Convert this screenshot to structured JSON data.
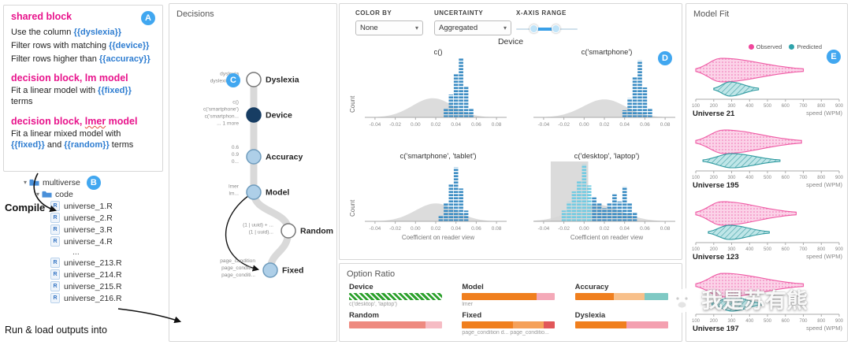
{
  "badges": {
    "a": "A",
    "b": "B",
    "c": "C",
    "d": "D",
    "e": "E"
  },
  "colors": {
    "accent_blue": "#41a7f0",
    "pink_title": "#e8148c",
    "variable_blue": "#2e7dd1",
    "hist_blue": "#3e8ec4",
    "hist_cyan": "#72cbe2",
    "node_dark": "#173d63",
    "node_light": "#aecfe8",
    "observed_pink": "#f0479c",
    "predicted_teal": "#2fa3ab",
    "ratio_green": "#2ca02c",
    "ratio_orange": "#f07f1e"
  },
  "shared_block": {
    "title": "shared block",
    "groups": [
      {
        "title": null,
        "lines": [
          [
            {
              "t": "Use the column "
            },
            {
              "t": "{{dyslexia}}",
              "v": true
            }
          ],
          [
            {
              "t": "Filter rows with matching "
            },
            {
              "t": "{{device}}",
              "v": true
            }
          ],
          [
            {
              "t": "Filter rows higher than "
            },
            {
              "t": "{{accuracy}}",
              "v": true
            }
          ]
        ]
      },
      {
        "title": [
          {
            "t": "decision block, lm model"
          }
        ],
        "lines": [
          [
            {
              "t": "Fit a linear model with "
            },
            {
              "t": "{{fixed}}",
              "v": true
            },
            {
              "t": " terms"
            }
          ]
        ]
      },
      {
        "title": [
          {
            "t": "decision block, "
          },
          {
            "t": "lmer",
            "squiggle": true
          },
          {
            "t": " model"
          }
        ],
        "lines": [
          [
            {
              "t": "Fit a linear mixed model with "
            },
            {
              "t": "{{fixed}}",
              "v": true
            },
            {
              "t": " and "
            },
            {
              "t": "{{random}}",
              "v": true
            },
            {
              "t": " terms"
            }
          ]
        ]
      }
    ]
  },
  "file_tree": {
    "root": "multiverse",
    "sub": "code",
    "files_top": [
      "universe_1.R",
      "universe_2.R",
      "universe_3.R",
      "universe_4.R"
    ],
    "ellipsis": "...",
    "files_bottom": [
      "universe_213.R",
      "universe_214.R",
      "universe_215.R",
      "universe_216.R"
    ],
    "compile_label": "Compile",
    "run_label": "Run & load outputs into"
  },
  "decisions": {
    "title": "Decisions",
    "nodes": [
      {
        "name": "Dyslexia",
        "fill": "white"
      },
      {
        "name": "Device",
        "fill": "dark"
      },
      {
        "name": "Accuracy",
        "fill": "light"
      },
      {
        "name": "Model",
        "fill": "light"
      },
      {
        "name": "Random",
        "fill": "white"
      },
      {
        "name": "Fixed",
        "fill": "light"
      }
    ],
    "edge_labels": [
      [
        "dyslexia",
        "dyslexia_bin"
      ],
      [
        "c()",
        "c('smartphone')",
        "c('smartphon...",
        "... 1 more"
      ],
      [
        "0.6",
        "0.9",
        "0..."
      ],
      [
        "lmer",
        "lm..."
      ],
      [
        "(1 | uuid) + ...",
        "(1 | uuid)..."
      ],
      [
        "page_condition",
        "page_conditi...",
        "page_conditi..."
      ]
    ]
  },
  "controls": {
    "color_by_label": "COLOR BY",
    "color_by_value": "None",
    "uncertainty_label": "UNCERTAINTY",
    "uncertainty_value": "Aggregated",
    "xaxis_label": "X-AXIS RANGE",
    "xaxis_handles": [
      0.28,
      0.62
    ]
  },
  "facet_title": "Device",
  "chart_data": [
    {
      "type": "bar",
      "title": "c()",
      "xlabel": "Coefficient on reader view",
      "ylabel": "Count",
      "xlim": [
        -0.05,
        0.09
      ],
      "xticks": [
        -0.04,
        -0.02,
        0,
        0.02,
        0.04,
        0.06,
        0.08
      ],
      "bars": [
        {
          "x": 0.03,
          "h": 0.14
        },
        {
          "x": 0.035,
          "h": 0.38
        },
        {
          "x": 0.04,
          "h": 0.72
        },
        {
          "x": 0.045,
          "h": 1.0
        },
        {
          "x": 0.05,
          "h": 0.52
        },
        {
          "x": 0.055,
          "h": 0.14
        }
      ],
      "density": {
        "mean": 0.017,
        "sd": 0.02,
        "h": 0.32
      }
    },
    {
      "type": "bar",
      "title": "c('smartphone')",
      "xlabel": "Coefficient on reader view",
      "ylabel": "Count",
      "xlim": [
        -0.05,
        0.09
      ],
      "xticks": [
        -0.04,
        -0.02,
        0,
        0.02,
        0.04,
        0.06,
        0.08
      ],
      "bars": [
        {
          "x": 0.04,
          "h": 0.12
        },
        {
          "x": 0.045,
          "h": 0.32
        },
        {
          "x": 0.05,
          "h": 0.68
        },
        {
          "x": 0.055,
          "h": 0.95
        },
        {
          "x": 0.06,
          "h": 0.5
        },
        {
          "x": 0.065,
          "h": 0.15
        }
      ],
      "density": {
        "mean": 0.02,
        "sd": 0.021,
        "h": 0.3
      }
    },
    {
      "type": "bar",
      "title": "c('smartphone', 'tablet')",
      "xlabel": "Coefficient on reader view",
      "ylabel": "Count",
      "xlim": [
        -0.05,
        0.09
      ],
      "xticks": [
        -0.04,
        -0.02,
        0,
        0.02,
        0.04,
        0.06,
        0.08
      ],
      "bars": [
        {
          "x": 0.025,
          "h": 0.1
        },
        {
          "x": 0.03,
          "h": 0.3
        },
        {
          "x": 0.035,
          "h": 0.62
        },
        {
          "x": 0.04,
          "h": 0.9
        },
        {
          "x": 0.045,
          "h": 0.55
        },
        {
          "x": 0.05,
          "h": 0.18
        }
      ],
      "density": {
        "mean": 0.02,
        "sd": 0.02,
        "h": 0.3
      }
    },
    {
      "type": "bar",
      "title": "c('desktop', 'laptop')",
      "xlabel": "Coefficient on reader view",
      "ylabel": "Count",
      "xlim": [
        -0.05,
        0.09
      ],
      "xticks": [
        -0.04,
        -0.02,
        0,
        0.02,
        0.04,
        0.06,
        0.08
      ],
      "brush": [
        -0.033,
        0.004
      ],
      "bars": [
        {
          "x": -0.02,
          "h": 0.18,
          "c": "cyan"
        },
        {
          "x": -0.015,
          "h": 0.32,
          "c": "cyan"
        },
        {
          "x": -0.01,
          "h": 0.5,
          "c": "cyan"
        },
        {
          "x": -0.005,
          "h": 0.68,
          "c": "cyan"
        },
        {
          "x": 0,
          "h": 0.95,
          "c": "cyan"
        },
        {
          "x": 0.005,
          "h": 0.6,
          "c": "cyan"
        },
        {
          "x": 0.01,
          "h": 0.4
        },
        {
          "x": 0.015,
          "h": 0.3
        },
        {
          "x": 0.02,
          "h": 0.22
        },
        {
          "x": 0.025,
          "h": 0.3
        },
        {
          "x": 0.03,
          "h": 0.45
        },
        {
          "x": 0.035,
          "h": 0.33
        },
        {
          "x": 0.04,
          "h": 0.58
        },
        {
          "x": 0.045,
          "h": 0.3
        },
        {
          "x": 0.05,
          "h": 0.14
        }
      ],
      "density": {
        "mean": 0.012,
        "sd": 0.024,
        "h": 0.28
      }
    },
    {
      "type": "violin",
      "title": "Model Fit",
      "xlabel": "speed (WPM)",
      "xticks": [
        100,
        200,
        300,
        400,
        500,
        600,
        700,
        800,
        900
      ],
      "series": [
        {
          "name": "Observed",
          "color": "#f0479c"
        },
        {
          "name": "Predicted",
          "color": "#2fa3ab"
        }
      ],
      "universes": [
        {
          "name": "Universe 21",
          "observed": {
            "min": 100,
            "peak": 240,
            "max": 700
          },
          "predicted": {
            "min": 200,
            "peak": 290,
            "max": 450
          }
        },
        {
          "name": "Universe 195",
          "observed": {
            "min": 100,
            "peak": 255,
            "max": 690
          },
          "predicted": {
            "min": 140,
            "peak": 300,
            "max": 570
          }
        },
        {
          "name": "Universe 123",
          "observed": {
            "min": 100,
            "peak": 245,
            "max": 660
          },
          "predicted": {
            "min": 170,
            "peak": 285,
            "max": 510
          }
        },
        {
          "name": "Universe 197",
          "observed": {
            "min": 100,
            "peak": 250,
            "max": 700
          },
          "predicted": {
            "min": 190,
            "peak": 300,
            "max": 470
          }
        }
      ]
    }
  ],
  "option_ratio": {
    "title": "Option Ratio",
    "items": [
      {
        "name": "Device",
        "segments": [
          {
            "color": "#2ca02c",
            "w": 100,
            "hatch": true
          }
        ],
        "sub": "c('desktop', 'laptop')"
      },
      {
        "name": "Model",
        "segments": [
          {
            "color": "#f07f1e",
            "w": 80
          },
          {
            "color": "#f4a9b8",
            "w": 20
          }
        ],
        "sub": "lmer"
      },
      {
        "name": "Accuracy",
        "segments": [
          {
            "color": "#f07f1e",
            "w": 42
          },
          {
            "color": "#f8c08a",
            "w": 33
          },
          {
            "color": "#7fc9c4",
            "w": 25
          }
        ],
        "sub": ""
      },
      {
        "name": "Random",
        "segments": [
          {
            "color": "#ee8a80",
            "w": 82
          },
          {
            "color": "#f6bcc4",
            "w": 18
          }
        ],
        "sub": ""
      },
      {
        "name": "Fixed",
        "segments": [
          {
            "color": "#f07f1e",
            "w": 55
          },
          {
            "color": "#f5a15a",
            "w": 33
          },
          {
            "color": "#e15759",
            "w": 12
          }
        ],
        "sub": "page_condition d...  page_conditio..."
      },
      {
        "name": "Dyslexia",
        "segments": [
          {
            "color": "#f07f1e",
            "w": 55
          },
          {
            "color": "#f4a0b0",
            "w": 45
          }
        ],
        "sub": ""
      }
    ]
  },
  "model_fit": {
    "title": "Model Fit"
  },
  "watermark": {
    "text": "我是苏有熊"
  }
}
